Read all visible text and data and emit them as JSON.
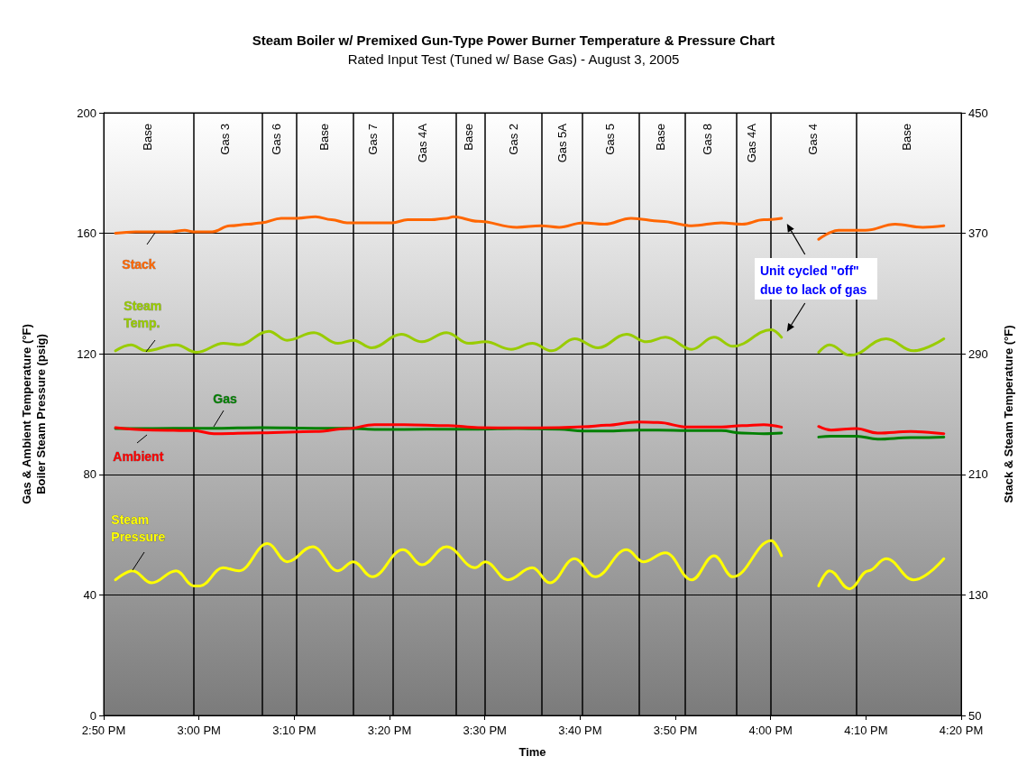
{
  "chart_data": {
    "type": "line",
    "title": "Steam Boiler w/ Premixed Gun-Type Power Burner Temperature & Pressure Chart",
    "subtitle": "Rated Input Test (Tuned w/ Base Gas) - August 3, 2005",
    "xlabel": "Time",
    "ylabel": "Gas & Ambient Temperature (°F)\nBoiler Steam Pressure (psig)",
    "y2label": "Stack & Steam Temperature (°F)",
    "xlim": [
      14.8333,
      16.3333
    ],
    "xticks": [
      {
        "value": 14.8333,
        "label": "2:50 PM"
      },
      {
        "value": 15,
        "label": "3:00 PM"
      },
      {
        "value": 15.1667,
        "label": "3:10 PM"
      },
      {
        "value": 15.3333,
        "label": "3:20 PM"
      },
      {
        "value": 15.5,
        "label": "3:30 PM"
      },
      {
        "value": 15.6667,
        "label": "3:40 PM"
      },
      {
        "value": 15.8333,
        "label": "3:50 PM"
      },
      {
        "value": 16,
        "label": "4:00 PM"
      },
      {
        "value": 16.1667,
        "label": "4:10 PM"
      },
      {
        "value": 16.3333,
        "label": "4:20 PM"
      }
    ],
    "ylim": [
      0,
      200
    ],
    "yticks": [
      0,
      40,
      80,
      120,
      160,
      200
    ],
    "y2lim": [
      50,
      450
    ],
    "y2ticks": [
      50,
      130,
      210,
      290,
      370,
      450
    ],
    "grid": "y",
    "legend": false,
    "marker": "none",
    "line_style": "solid",
    "annotations": [
      "Unit cycled \"off\" due to lack of gas",
      "Base",
      "Gas 3",
      "Gas 6",
      "Base",
      "Gas 7",
      "Gas 4A",
      "Base",
      "Gas 2",
      "Gas 5A",
      "Gas 5",
      "Base",
      "Gas 8",
      "Gas 4A",
      "Gas 4",
      "Base"
    ],
    "ref_lines": [
      {
        "axis": "x",
        "value": 14.991,
        "color": "#000000"
      },
      {
        "axis": "x",
        "value": 15.105,
        "color": "#000000"
      },
      {
        "axis": "x",
        "value": 15.172,
        "color": "#000000"
      },
      {
        "axis": "x",
        "value": 15.272,
        "color": "#000000"
      },
      {
        "axis": "x",
        "value": 15.342,
        "color": "#000000"
      },
      {
        "axis": "x",
        "value": 15.445,
        "color": "#000000"
      },
      {
        "axis": "x",
        "value": 15.503,
        "color": "#000000"
      },
      {
        "axis": "x",
        "value": 15.603,
        "color": "#000000"
      },
      {
        "axis": "x",
        "value": 15.672,
        "color": "#000000"
      },
      {
        "axis": "x",
        "value": 15.772,
        "color": "#000000"
      },
      {
        "axis": "x",
        "value": 15.847,
        "color": "#000000"
      },
      {
        "axis": "x",
        "value": 15.935,
        "color": "#000000"
      },
      {
        "axis": "x",
        "value": 16.003,
        "color": "#000000"
      },
      {
        "axis": "x",
        "value": 16.148,
        "color": "#000000"
      }
    ],
    "series": [
      {
        "name": "Stack",
        "color": "#ff6600",
        "axis": "y2",
        "x": [
          14.854,
          14.889,
          14.92,
          14.952,
          14.975,
          14.991,
          15.023,
          15.054,
          15.086,
          15.109,
          15.144,
          15.172,
          15.204,
          15.232,
          15.259,
          15.299,
          15.338,
          15.365,
          15.406,
          15.433,
          15.445,
          15.488,
          15.556,
          15.598,
          15.63,
          15.672,
          15.709,
          15.756,
          15.808,
          15.862,
          15.914,
          15.95,
          15.988,
          16.019,
          16.04,
          16.084,
          16.119,
          16.166,
          16.218,
          16.266,
          16.303
        ],
        "values": [
          370,
          371,
          371,
          371,
          372,
          371,
          371,
          375,
          376,
          377,
          380,
          380,
          381,
          379,
          377,
          377,
          377,
          379,
          379,
          380,
          381,
          378,
          374,
          375,
          374,
          377,
          376,
          380,
          378,
          375,
          377,
          376,
          379,
          380,
          null,
          366,
          372,
          372,
          376,
          374,
          375
        ]
      },
      {
        "name": "Steam Temp.",
        "color": "#99cc00",
        "axis": "y2",
        "x": [
          14.854,
          14.881,
          14.907,
          14.96,
          14.996,
          15.043,
          15.07,
          15.122,
          15.154,
          15.201,
          15.243,
          15.27,
          15.302,
          15.354,
          15.39,
          15.433,
          15.472,
          15.501,
          15.546,
          15.583,
          15.617,
          15.657,
          15.698,
          15.748,
          15.783,
          15.816,
          15.862,
          15.901,
          15.934,
          16.001,
          16.019,
          16.04,
          16.084,
          16.103,
          16.139,
          16.202,
          16.25,
          16.303
        ],
        "values": [
          292,
          296,
          292,
          296,
          291,
          297,
          296,
          305,
          299,
          304,
          297,
          299,
          294,
          303,
          298,
          304,
          297,
          298,
          293,
          297,
          292,
          300,
          294,
          303,
          298,
          301,
          293,
          301,
          295,
          306,
          301,
          null,
          291,
          296,
          289,
          300,
          292,
          300
        ]
      },
      {
        "name": "Gas",
        "color": "#008000",
        "x": [
          14.854,
          14.92,
          14.991,
          15.026,
          15.109,
          15.204,
          15.259,
          15.307,
          15.359,
          15.436,
          15.488,
          15.556,
          15.63,
          15.672,
          15.713,
          15.767,
          15.803,
          15.855,
          15.914,
          15.95,
          15.988,
          16.019,
          16.04,
          16.084,
          16.106,
          16.15,
          16.187,
          16.245,
          16.303
        ],
        "values": [
          95.2,
          95.2,
          95.3,
          95.3,
          95.5,
          95.3,
          95.3,
          94.9,
          94.9,
          95.0,
          95.0,
          95.2,
          95.0,
          94.4,
          94.4,
          94.7,
          94.7,
          94.5,
          94.5,
          93.7,
          93.5,
          93.7,
          null,
          92.4,
          92.7,
          92.7,
          91.7,
          92.2,
          92.4
        ]
      },
      {
        "name": "Ambient",
        "color": "#ff0000",
        "x": [
          14.854,
          14.92,
          14.991,
          15.026,
          15.109,
          15.204,
          15.259,
          15.307,
          15.359,
          15.436,
          15.488,
          15.556,
          15.63,
          15.672,
          15.713,
          15.767,
          15.803,
          15.855,
          15.914,
          15.95,
          15.988,
          16.019,
          16.04,
          16.084,
          16.106,
          16.15,
          16.187,
          16.245,
          16.303
        ],
        "values": [
          95.5,
          94.7,
          94.5,
          93.5,
          93.8,
          94.2,
          95.2,
          96.5,
          96.5,
          96.2,
          95.5,
          95.4,
          95.5,
          95.8,
          96.3,
          97.4,
          97.2,
          95.7,
          95.7,
          96.2,
          96.5,
          95.7,
          null,
          95.9,
          94.7,
          95.2,
          93.7,
          94.2,
          93.5
        ]
      },
      {
        "name": "Steam Pressure",
        "color": "#ffff00",
        "x": [
          14.854,
          14.884,
          14.917,
          14.96,
          14.991,
          15.002,
          15.042,
          15.07,
          15.12,
          15.154,
          15.199,
          15.243,
          15.27,
          15.303,
          15.357,
          15.39,
          15.433,
          15.483,
          15.501,
          15.54,
          15.583,
          15.614,
          15.657,
          15.693,
          15.748,
          15.777,
          15.816,
          15.862,
          15.901,
          15.934,
          16.001,
          16.019,
          16.04,
          16.084,
          16.103,
          16.138,
          16.171,
          16.202,
          16.25,
          16.303
        ],
        "values": [
          45,
          48,
          44,
          48,
          43,
          43,
          49,
          48,
          57,
          51,
          56,
          48,
          51,
          46,
          55,
          50,
          56,
          49,
          51,
          45,
          49,
          44,
          52,
          46,
          55,
          51,
          54,
          45,
          53,
          46,
          58,
          53,
          null,
          43,
          48,
          42,
          48,
          52,
          45,
          52
        ]
      }
    ]
  }
}
